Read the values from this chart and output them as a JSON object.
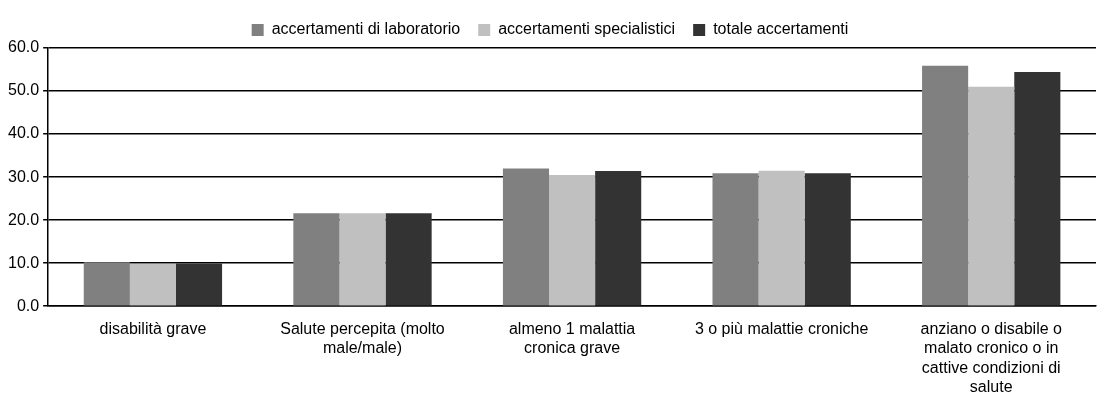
{
  "chart_data": {
    "type": "bar",
    "categories": [
      "disabilità grave",
      "Salute percepita (molto male/male)",
      "almeno 1 malattia cronica grave",
      "3 o più malattie croniche",
      "anziano o disabile o malato cronico o in cattive condizioni di salute"
    ],
    "series": [
      {
        "name": "accertamenti di laboratorio",
        "color": "#808080",
        "values": [
          10.2,
          21.6,
          32.0,
          30.9,
          55.9
        ]
      },
      {
        "name": "accertamenti specialistici",
        "color": "#c0c0c0",
        "values": [
          9.8,
          21.6,
          30.5,
          31.5,
          51.0
        ]
      },
      {
        "name": "totale accertamenti",
        "color": "#333333",
        "values": [
          9.9,
          21.6,
          31.4,
          30.9,
          54.4
        ]
      }
    ],
    "ylim": [
      0,
      60
    ],
    "yticks": [
      {
        "value": 0,
        "label": "0.0"
      },
      {
        "value": 10,
        "label": "10.0"
      },
      {
        "value": 20,
        "label": "20.0"
      },
      {
        "value": 30,
        "label": "30.0"
      },
      {
        "value": 40,
        "label": "40.0"
      },
      {
        "value": 50,
        "label": "50.0"
      },
      {
        "value": 60,
        "label": "60.0"
      }
    ],
    "grid": "y",
    "legend": "top"
  }
}
